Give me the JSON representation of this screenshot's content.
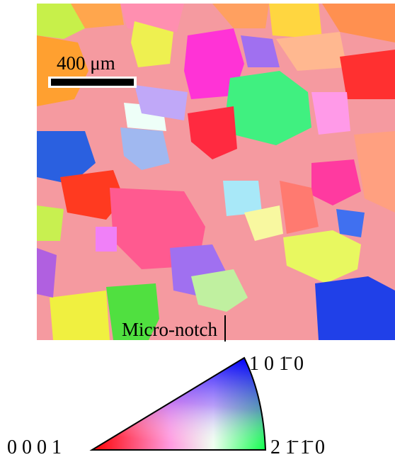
{
  "scale_bar": {
    "label": "400 μm"
  },
  "notch": {
    "label": "Micro-notch"
  },
  "legend": {
    "corners": [
      "0 0 0 1",
      "2 1̄ 1̄ 0",
      "1 0 1̄ 0"
    ]
  }
}
